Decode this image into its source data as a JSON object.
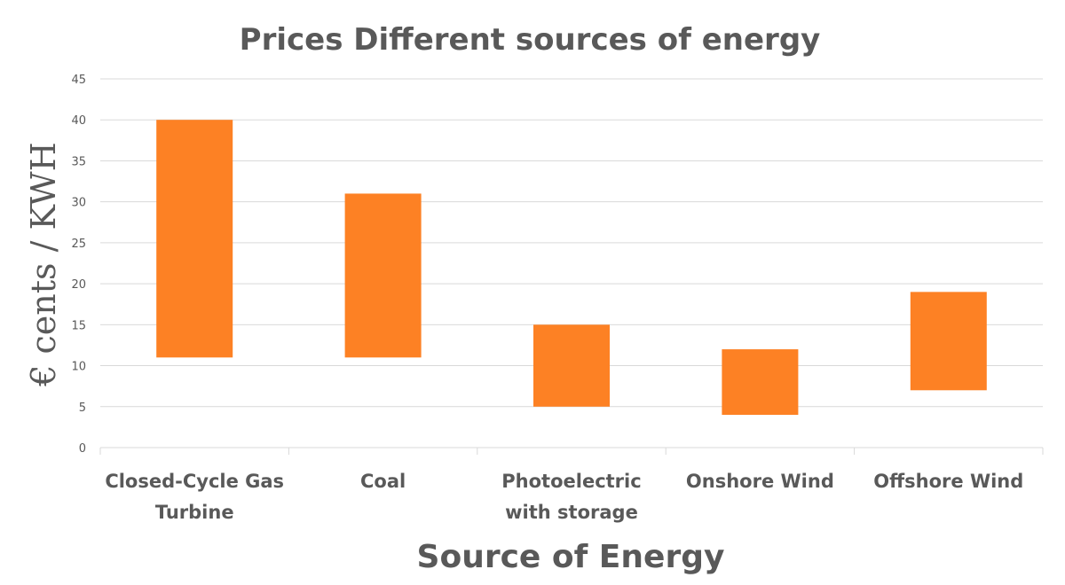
{
  "chart_data": {
    "type": "bar",
    "subtype": "floating-range",
    "title": "Prices Different sources of energy",
    "xlabel": "Source of Energy",
    "ylabel": "€ cents / KWH",
    "ylim": [
      0,
      45
    ],
    "yticks": [
      0,
      5,
      10,
      15,
      20,
      25,
      30,
      35,
      40,
      45
    ],
    "grid": true,
    "legend": "none",
    "categories": [
      [
        "Closed-Cycle Gas",
        "Turbine"
      ],
      [
        "Coal"
      ],
      [
        "Photoelectric",
        "with storage"
      ],
      [
        "Onshore Wind"
      ],
      [
        "Offshore Wind"
      ]
    ],
    "series": [
      {
        "low": [
          11,
          11,
          5,
          4,
          7
        ],
        "high": [
          40,
          31,
          15,
          12,
          19
        ],
        "color": "#fd8124"
      }
    ]
  }
}
